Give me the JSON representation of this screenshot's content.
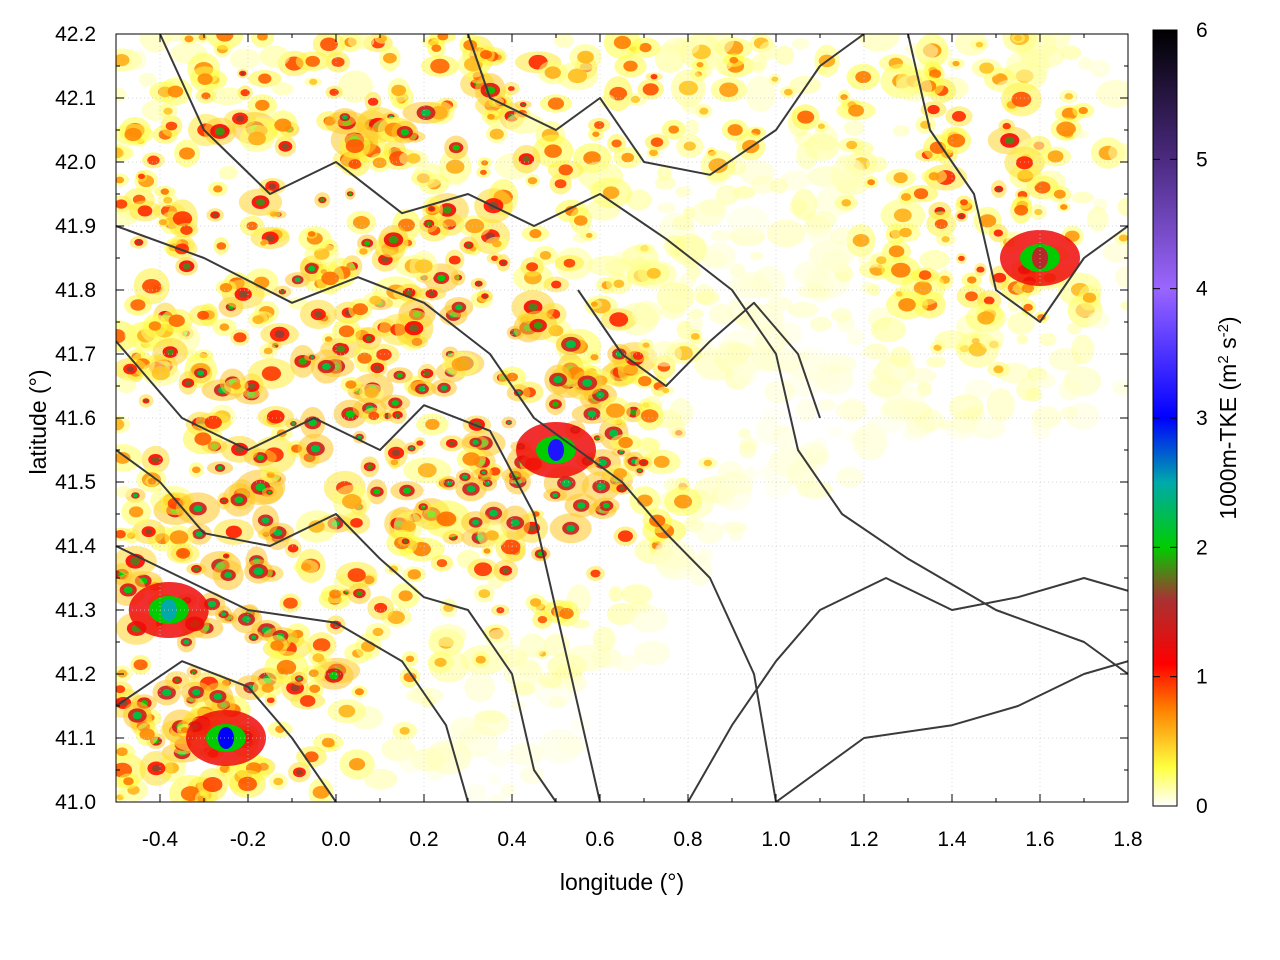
{
  "chart_data": {
    "type": "heatmap",
    "title": "",
    "xlabel": "longitude (°)",
    "ylabel": "latitude (°)",
    "xlim": [
      -0.5,
      1.8
    ],
    "ylim": [
      41.0,
      42.2
    ],
    "xticks": [
      "-0.4",
      "-0.2",
      "0.0",
      "0.2",
      "0.4",
      "0.6",
      "0.8",
      "1.0",
      "1.2",
      "1.4",
      "1.6",
      "1.8"
    ],
    "yticks": [
      "41.0",
      "41.1",
      "41.2",
      "41.3",
      "41.4",
      "41.5",
      "41.6",
      "41.7",
      "41.8",
      "41.9",
      "42.0",
      "42.1",
      "42.2"
    ],
    "grid": true,
    "colorbar": {
      "label_main": "1000m-TKE (m",
      "label_sup1": "2",
      "label_mid": " s",
      "label_sup2": "-2",
      "label_end": ")",
      "range": [
        0,
        6
      ],
      "ticks": [
        "0",
        "1",
        "2",
        "3",
        "4",
        "5",
        "6"
      ],
      "stops": [
        {
          "value": 0.0,
          "color": "#ffffff"
        },
        {
          "value": 0.3,
          "color": "#ffff40"
        },
        {
          "value": 0.75,
          "color": "#ff8000"
        },
        {
          "value": 1.1,
          "color": "#ff0000"
        },
        {
          "value": 1.6,
          "color": "#a83232"
        },
        {
          "value": 2.0,
          "color": "#00cc00"
        },
        {
          "value": 2.5,
          "color": "#00aaaa"
        },
        {
          "value": 3.0,
          "color": "#0000ff"
        },
        {
          "value": 4.0,
          "color": "#9a66ff"
        },
        {
          "value": 5.0,
          "color": "#4b2a80"
        },
        {
          "value": 6.0,
          "color": "#000000"
        }
      ]
    },
    "features": [
      {
        "name": "central-maximum",
        "lon": 0.5,
        "lat": 41.55,
        "value": 3.2
      },
      {
        "name": "southwest-maximum",
        "lon": -0.25,
        "lat": 41.1,
        "value": 3.0
      },
      {
        "name": "west-maximum",
        "lon": -0.38,
        "lat": 41.3,
        "value": 2.5
      },
      {
        "name": "northeast-band",
        "lon": 1.6,
        "lat": 41.85,
        "value": 1.5
      },
      {
        "name": "southeast-calm",
        "lon": 1.35,
        "lat": 41.25,
        "value": 0.05
      }
    ],
    "contours": "terrain height isolines (black)"
  }
}
